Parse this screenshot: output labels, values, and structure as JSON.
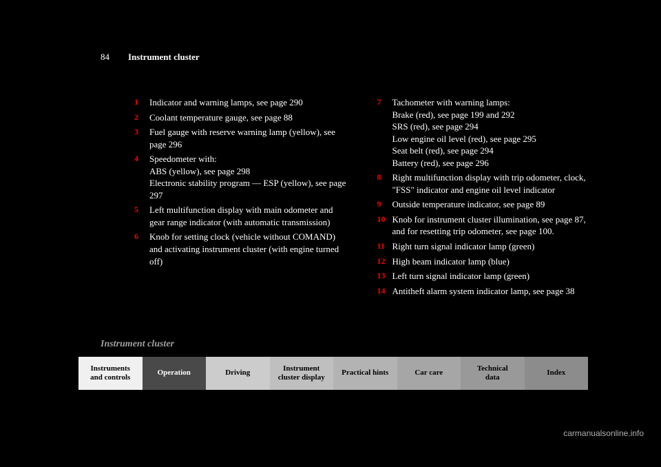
{
  "page_number": "84",
  "section_title": "Instrument cluster",
  "breadcrumb": "Instrument cluster",
  "left_column": [
    {
      "n": "1",
      "text": "Indicator and warning lamps, see page 290"
    },
    {
      "n": "2",
      "text": "Coolant temperature gauge, see page 88"
    },
    {
      "n": "3",
      "text": "Fuel gauge with reserve warning lamp (yellow), see page 296"
    },
    {
      "n": "4",
      "text": "Speedometer with:\nABS (yellow), see page 298\nElectronic stability program — ESP (yellow), see page 297"
    },
    {
      "n": "5",
      "text": "Left multifunction display with main odometer and gear range indicator (with automatic transmission)"
    },
    {
      "n": "6",
      "text": "Knob for setting clock (vehicle without COMAND) and activating instrument cluster (with engine turned off)"
    }
  ],
  "right_column": [
    {
      "n": "7",
      "text": "Tachometer with warning lamps:\nBrake (red), see page 199 and 292\nSRS (red), see page 294\nLow engine oil level (red), see page 295\nSeat belt (red), see page 294\nBattery (red), see page 296"
    },
    {
      "n": "8",
      "text": "Right multifunction display with trip odometer, clock, \"FSS\" indicator and engine oil level indicator"
    },
    {
      "n": "9",
      "text": "Outside temperature indicator, see page 89"
    },
    {
      "n": "10",
      "text": "Knob for instrument cluster illumination, see page 87, and for resetting trip odometer, see page 100."
    },
    {
      "n": "11",
      "text": "Right turn signal indicator lamp (green)"
    },
    {
      "n": "12",
      "text": "High beam indicator lamp (blue)"
    },
    {
      "n": "13",
      "text": "Left turn signal indicator lamp (green)"
    },
    {
      "n": "14",
      "text": "Antitheft alarm system indicator lamp, see page 38"
    }
  ],
  "tabs": [
    "Instruments\nand controls",
    "Operation",
    "Driving",
    "Instrument\ncluster display",
    "Practical hints",
    "Car care",
    "Technical\ndata",
    "Index"
  ],
  "tab_colors": [
    "#f0f0f0",
    "#494949",
    "#cccccc",
    "#bfbfbf",
    "#b3b3b3",
    "#a6a6a6",
    "#999999",
    "#8c8c8c"
  ],
  "watermark": "carmanualsonline.info"
}
